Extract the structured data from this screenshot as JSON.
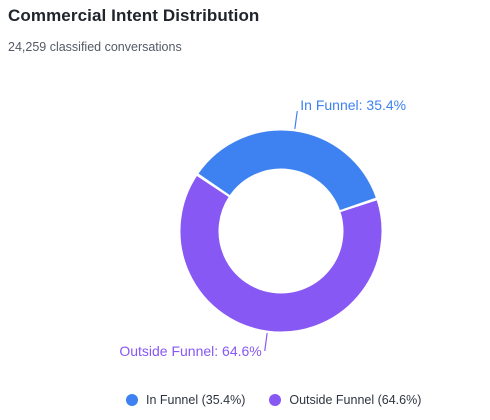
{
  "header": {
    "title": "Commercial Intent Distribution",
    "subtitle": "24,259 classified conversations"
  },
  "legend": [
    {
      "label": "In Funnel (35.4%)",
      "color": "#3d82f0"
    },
    {
      "label": "Outside Funnel (64.6%)",
      "color": "#8758f4"
    }
  ],
  "chart_data": {
    "type": "pie",
    "title": "Commercial Intent Distribution",
    "subtitle": "24,259 classified conversations",
    "slices": [
      {
        "name": "In Funnel",
        "value": 35.4,
        "label": "In Funnel: 35.4%",
        "legend_label": "In Funnel (35.4%)",
        "color": "#3d82f0"
      },
      {
        "name": "Outside Funnel",
        "value": 64.6,
        "label": "Outside Funnel: 64.6%",
        "legend_label": "Outside Funnel (64.6%)",
        "color": "#8758f4"
      }
    ],
    "total_count": 24259,
    "legend_placement": "bottom",
    "grid": false
  }
}
